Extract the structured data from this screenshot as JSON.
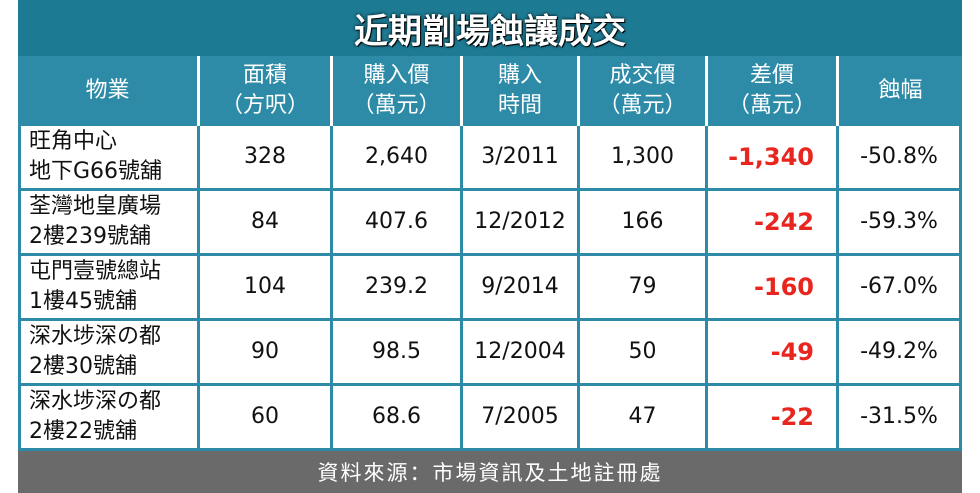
{
  "title": "近期劏場蝕讓成交",
  "table": {
    "header": [
      [
        "物業"
      ],
      [
        "面積",
        "（方呎）"
      ],
      [
        "購入價",
        "（萬元）"
      ],
      [
        "購入",
        "時間"
      ],
      [
        "成交價",
        "（萬元）"
      ],
      [
        "差價",
        "（萬元）"
      ],
      [
        "蝕幅"
      ]
    ],
    "rows": [
      [
        [
          "旺角中心",
          "地下G66號舖"
        ],
        "328",
        "2,640",
        "3/2011",
        "1,300",
        "-1,340",
        "-50.8%"
      ],
      [
        [
          "荃灣地皇廣場",
          "2樓239號舖"
        ],
        "84",
        "407.6",
        "12/2012",
        "166",
        "-242",
        "-59.3%"
      ],
      [
        [
          "屯門壹號總站",
          "1樓45號舖"
        ],
        "104",
        "239.2",
        "9/2014",
        "79",
        "-160",
        "-67.0%"
      ],
      [
        [
          "深水埗深の都",
          "2樓30號舖"
        ],
        "90",
        "98.5",
        "12/2004",
        "50",
        "-49",
        "-49.2%"
      ],
      [
        [
          "深水埗深の都",
          "2樓22號舖"
        ],
        "60",
        "68.6",
        "7/2005",
        "47",
        "-22",
        "-31.5%"
      ]
    ]
  },
  "footer": "資料來源：市場資訊及土地註冊處"
}
